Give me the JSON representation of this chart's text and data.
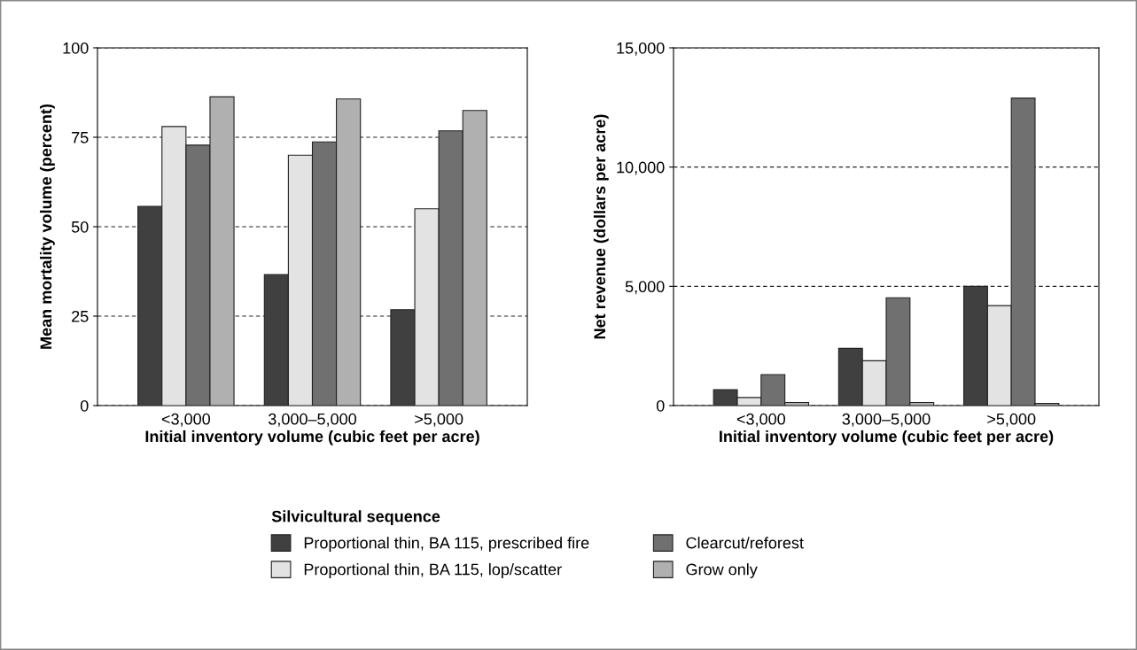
{
  "chart_data": [
    {
      "type": "bar",
      "categories": [
        "<3,000",
        "3,000–5,000",
        ">5,000"
      ],
      "xlabel": "Initial inventory volume (cubic feet per acre)",
      "ylabel": "Mean mortality volume (percent)",
      "ylim": [
        0,
        100
      ],
      "yticks": [
        0,
        25,
        50,
        75,
        100
      ],
      "grid": "y",
      "legend": "bottom",
      "legend_title": "Silvicultural sequence",
      "series": [
        {
          "name": "Proportional thin, BA 115, prescribed fire",
          "color": "#404040",
          "values": [
            55.7,
            36.6,
            26.8
          ]
        },
        {
          "name": "Proportional thin, BA 115, lop/scatter",
          "color": "#e3e3e3",
          "values": [
            78,
            70,
            55
          ]
        },
        {
          "name": "Clearcut/reforest",
          "color": "#707070",
          "values": [
            72.8,
            73.7,
            76.8
          ]
        },
        {
          "name": "Grow only",
          "color": "#b0b0b0",
          "values": [
            86.3,
            85.7,
            82.5
          ]
        }
      ]
    },
    {
      "type": "bar",
      "categories": [
        "<3,000",
        "3,000–5,000",
        ">5,000"
      ],
      "xlabel": "Initial inventory volume (cubic feet per acre)",
      "ylabel": "Net revenue (dollars per acre)",
      "ylim": [
        0,
        15000
      ],
      "yticks": [
        {
          "value": 0,
          "label": "0"
        },
        {
          "value": 5000,
          "label": "5,000"
        },
        {
          "value": 10000,
          "label": "10,000"
        },
        {
          "value": 15000,
          "label": "15,000"
        }
      ],
      "grid": "y",
      "series": [
        {
          "color": "#404040",
          "values": [
            670,
            2400,
            5000
          ]
        },
        {
          "color": "#e3e3e3",
          "values": [
            340,
            1880,
            4190
          ]
        },
        {
          "color": "#707070",
          "values": [
            1300,
            4520,
            12890
          ]
        },
        {
          "color": "#b0b0b0",
          "values": [
            130,
            130,
            90
          ]
        }
      ]
    }
  ]
}
